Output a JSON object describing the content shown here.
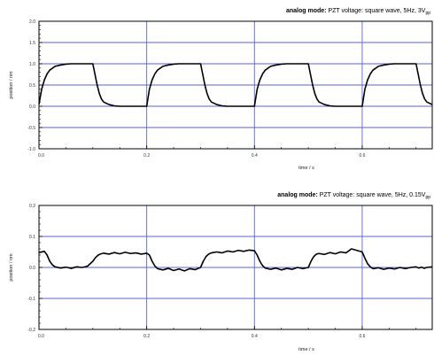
{
  "chart_data": [
    {
      "type": "line",
      "title_bold": "analog mode:",
      "title_rest": "PZT voltage: square wave, 5Hz, 3V",
      "title_sub": "pp",
      "xlabel": "time / s",
      "ylabel": "position / nm",
      "xlim": [
        0,
        0.73
      ],
      "ylim": [
        -1.0,
        2.0
      ],
      "xticks": [
        0.0,
        0.2,
        0.4,
        0.6
      ],
      "xtick_labels": [
        "0.0",
        "0.2",
        "0.4",
        "0.6"
      ],
      "yticks": [
        -1.0,
        -0.5,
        0.0,
        0.5,
        1.0,
        1.5,
        2.0
      ],
      "ytick_labels": [
        "-1.0",
        "-0.5",
        "0.0",
        "0.5",
        "1.0",
        "1.5",
        "2.0"
      ],
      "grid": true,
      "series": [
        {
          "color": "#000000",
          "x": [
            0.0,
            0.005,
            0.01,
            0.015,
            0.02,
            0.03,
            0.04,
            0.05,
            0.06,
            0.08,
            0.1,
            0.104,
            0.108,
            0.112,
            0.116,
            0.12,
            0.13,
            0.14,
            0.15,
            0.16,
            0.18,
            0.2,
            0.205,
            0.21,
            0.215,
            0.22,
            0.23,
            0.24,
            0.25,
            0.26,
            0.28,
            0.3,
            0.304,
            0.308,
            0.312,
            0.316,
            0.32,
            0.33,
            0.34,
            0.35,
            0.36,
            0.38,
            0.4,
            0.405,
            0.41,
            0.415,
            0.42,
            0.43,
            0.44,
            0.45,
            0.46,
            0.48,
            0.5,
            0.504,
            0.508,
            0.512,
            0.516,
            0.52,
            0.53,
            0.54,
            0.55,
            0.56,
            0.58,
            0.6,
            0.605,
            0.61,
            0.615,
            0.62,
            0.63,
            0.64,
            0.65,
            0.66,
            0.68,
            0.7,
            0.704,
            0.708,
            0.712,
            0.716,
            0.72,
            0.73
          ],
          "y": [
            0.05,
            0.4,
            0.62,
            0.76,
            0.85,
            0.94,
            0.97,
            0.99,
            1.0,
            1.0,
            1.0,
            0.75,
            0.5,
            0.3,
            0.17,
            0.1,
            0.04,
            0.01,
            0.0,
            0.0,
            0.0,
            0.0,
            0.4,
            0.62,
            0.76,
            0.85,
            0.94,
            0.97,
            0.99,
            1.0,
            1.0,
            1.0,
            0.75,
            0.5,
            0.3,
            0.17,
            0.1,
            0.04,
            0.01,
            0.0,
            0.0,
            0.0,
            0.0,
            0.4,
            0.62,
            0.76,
            0.85,
            0.94,
            0.97,
            0.99,
            1.0,
            1.0,
            1.0,
            0.75,
            0.5,
            0.3,
            0.17,
            0.1,
            0.04,
            0.01,
            0.0,
            0.0,
            0.0,
            0.0,
            0.4,
            0.62,
            0.76,
            0.85,
            0.94,
            0.97,
            0.99,
            1.0,
            1.0,
            1.0,
            0.75,
            0.5,
            0.3,
            0.17,
            0.1,
            0.04
          ]
        }
      ]
    },
    {
      "type": "line",
      "title_bold": "analog mode:",
      "title_rest": "PZT voltage: square wave, 5Hz, 0.15V",
      "title_sub": "pp",
      "xlabel": "time / s",
      "ylabel": "position / nm",
      "xlim": [
        0,
        0.73
      ],
      "ylim": [
        -0.2,
        0.2
      ],
      "xticks": [
        0.0,
        0.2,
        0.4,
        0.6
      ],
      "xtick_labels": [
        "0.0",
        "0.2",
        "0.4",
        "0.6"
      ],
      "yticks": [
        -0.2,
        -0.1,
        0.0,
        0.1,
        0.2
      ],
      "ytick_labels": [
        "-0.2",
        "-0.1",
        "0.0",
        "0.1",
        "0.2"
      ],
      "grid": true,
      "series": [
        {
          "color": "#000000",
          "x": [
            0.0,
            0.01,
            0.015,
            0.02,
            0.025,
            0.03,
            0.04,
            0.05,
            0.06,
            0.07,
            0.08,
            0.09,
            0.1,
            0.105,
            0.11,
            0.115,
            0.12,
            0.13,
            0.14,
            0.15,
            0.16,
            0.17,
            0.18,
            0.19,
            0.2,
            0.205,
            0.21,
            0.215,
            0.22,
            0.23,
            0.24,
            0.25,
            0.26,
            0.27,
            0.28,
            0.29,
            0.3,
            0.305,
            0.31,
            0.315,
            0.32,
            0.33,
            0.34,
            0.35,
            0.36,
            0.37,
            0.38,
            0.39,
            0.4,
            0.405,
            0.41,
            0.415,
            0.42,
            0.43,
            0.44,
            0.45,
            0.46,
            0.47,
            0.48,
            0.49,
            0.5,
            0.505,
            0.51,
            0.515,
            0.52,
            0.53,
            0.54,
            0.55,
            0.56,
            0.57,
            0.58,
            0.59,
            0.6,
            0.605,
            0.61,
            0.615,
            0.62,
            0.63,
            0.64,
            0.65,
            0.66,
            0.67,
            0.68,
            0.69,
            0.7,
            0.705,
            0.71,
            0.715,
            0.72,
            0.73
          ],
          "y": [
            0.048,
            0.052,
            0.04,
            0.02,
            0.008,
            0.002,
            -0.002,
            0.001,
            -0.003,
            0.002,
            0.0,
            0.004,
            0.02,
            0.032,
            0.04,
            0.044,
            0.046,
            0.043,
            0.048,
            0.044,
            0.049,
            0.045,
            0.047,
            0.043,
            0.046,
            0.04,
            0.02,
            0.005,
            -0.004,
            -0.008,
            -0.003,
            -0.01,
            -0.005,
            -0.011,
            -0.004,
            -0.007,
            0.0,
            0.02,
            0.035,
            0.043,
            0.047,
            0.05,
            0.047,
            0.053,
            0.05,
            0.055,
            0.052,
            0.056,
            0.054,
            0.04,
            0.02,
            0.006,
            -0.002,
            -0.006,
            -0.002,
            -0.008,
            -0.003,
            -0.006,
            0.0,
            -0.004,
            0.0,
            0.02,
            0.035,
            0.043,
            0.045,
            0.042,
            0.048,
            0.044,
            0.05,
            0.047,
            0.06,
            0.055,
            0.05,
            0.03,
            0.012,
            0.002,
            -0.004,
            -0.001,
            -0.006,
            -0.002,
            -0.005,
            0.0,
            -0.004,
            0.0,
            0.002,
            -0.002,
            0.001,
            -0.003,
            0.0,
            0.002
          ]
        }
      ]
    }
  ]
}
